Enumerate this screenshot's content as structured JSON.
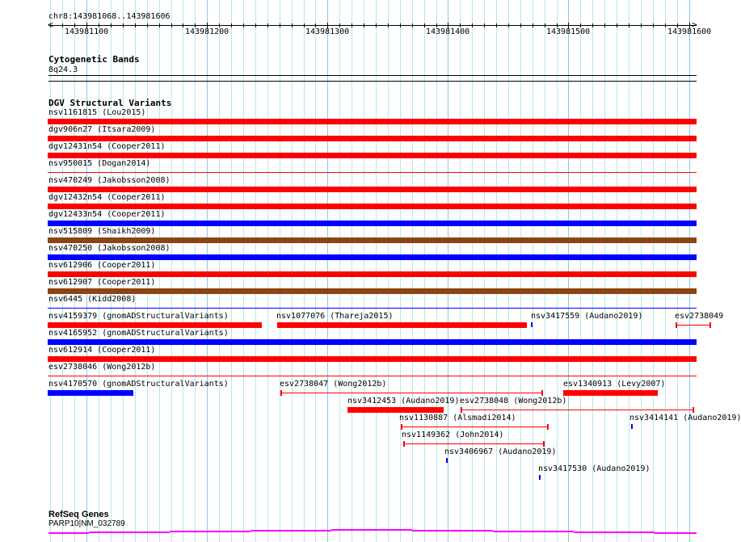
{
  "ruler": {
    "position": "chr8:143981068..143981606",
    "start": 143981068,
    "end": 143981606,
    "ticks": [
      "143981100",
      "143981200",
      "143981300",
      "143981400",
      "143981500",
      "143981600"
    ]
  },
  "cytobands": {
    "title": "Cytogenetic Bands",
    "band": "8q24.3"
  },
  "dgv": {
    "title": "DGV Structural Variants",
    "colors": {
      "red": "#ff0000",
      "blue": "#0000ff",
      "brown": "#8b4513"
    },
    "features": [
      {
        "label": "nsv1161815 (Lou2015)",
        "color": "red"
      },
      {
        "label": "dgv906n27 (Itsara2009)",
        "color": "red"
      },
      {
        "label": "dgv12431n54 (Cooper2011)",
        "color": "red"
      },
      {
        "label": "nsv950015 (Dogan2014)",
        "color": "red"
      },
      {
        "label": "nsv470249 (Jakobsson2008)",
        "color": "red"
      },
      {
        "label": "dgv12432n54 (Cooper2011)",
        "color": "red"
      },
      {
        "label": "dgv12433n54 (Cooper2011)",
        "color": "blue"
      },
      {
        "label": "nsv515809 (Shaikh2009)",
        "color": "brown"
      },
      {
        "label": "nsv470250 (Jakobsson2008)",
        "color": "blue"
      },
      {
        "label": "nsv612906 (Cooper2011)",
        "color": "red"
      },
      {
        "label": "nsv612907 (Cooper2011)",
        "color": "brown"
      },
      {
        "label": "nsv6445 (Kidd2008)",
        "color": "blue"
      },
      {
        "label": "nsv4159379 (gnomADStructuralVariants)",
        "color": "red"
      },
      {
        "label": "nsv1077076 (Thareja2015)",
        "color": "red"
      },
      {
        "label": "nsv3417559 (Audano2019)",
        "color": "blue"
      },
      {
        "label": "esv2738049",
        "color": "red"
      },
      {
        "label": "nsv4165952 (gnomADStructuralVariants)",
        "color": "blue"
      },
      {
        "label": "nsv612914 (Cooper2011)",
        "color": "red"
      },
      {
        "label": "esv2738046 (Wong2012b)",
        "color": "red"
      },
      {
        "label": "nsv4170570 (gnomADStructuralVariants)",
        "color": "blue"
      },
      {
        "label": "esv2738047 (Wong2012b)",
        "color": "red"
      },
      {
        "label": "esv1340913 (Levy2007)",
        "color": "red"
      },
      {
        "label": "nsv3412453 (Audano2019)",
        "color": "red"
      },
      {
        "label": "esv2738048 (Wong2012b)",
        "color": "red"
      },
      {
        "label": "nsv1130887 (Alsmadi2014)",
        "color": "red"
      },
      {
        "label": "nsv3414141 (Audano2019)",
        "color": "blue"
      },
      {
        "label": "nsv1149362 (John2014)",
        "color": "red"
      },
      {
        "label": "nsv3406967 (Audano2019)",
        "color": "blue"
      },
      {
        "label": "nsv3417530 (Audano2019)",
        "color": "blue"
      }
    ]
  },
  "refseq": {
    "title": "RefSeq Genes",
    "gene": "PARP10|NM_032789",
    "color": "#ff00ff"
  }
}
